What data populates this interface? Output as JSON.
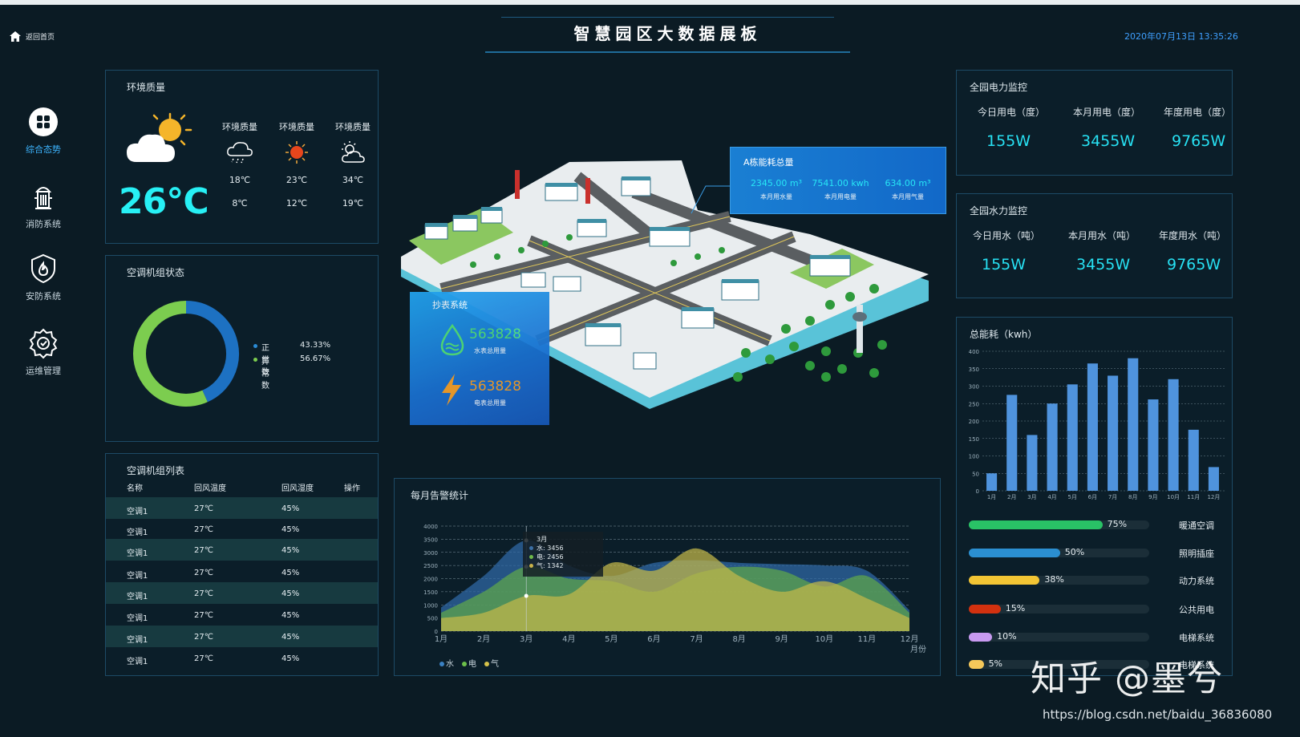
{
  "header": {
    "back_label": "返回首页",
    "title": "智慧园区大数据展板",
    "datetime": "2020年07月13日 13:35:26"
  },
  "nav": [
    {
      "label": "综合态势",
      "icon": "grid-icon",
      "active": true
    },
    {
      "label": "消防系统",
      "icon": "hydrant-icon",
      "active": false
    },
    {
      "label": "安防系统",
      "icon": "shield-icon",
      "active": false
    },
    {
      "label": "运维管理",
      "icon": "gear-icon",
      "active": false
    }
  ],
  "environment": {
    "title": "环境质量",
    "current_temp": "26℃",
    "forecast": [
      {
        "label": "环境质量",
        "icon": "rain-cloud-icon",
        "high": "18℃",
        "low": "8℃"
      },
      {
        "label": "环境质量",
        "icon": "sun-icon",
        "high": "23℃",
        "low": "12℃"
      },
      {
        "label": "环境质量",
        "icon": "partly-cloudy-icon",
        "high": "34℃",
        "low": "19℃"
      }
    ]
  },
  "ac_status": {
    "title": "空调机组状态",
    "legend": [
      {
        "name": "正常数",
        "value": "43.33%",
        "color": "#1d71c2"
      },
      {
        "name": "异常数",
        "value": "56.67%",
        "color": "#7ccd4f"
      }
    ],
    "chart_data": {
      "type": "pie",
      "categories": [
        "正常数",
        "异常数"
      ],
      "values": [
        43.33,
        56.67
      ]
    }
  },
  "ac_list": {
    "title": "空调机组列表",
    "columns": [
      "名称",
      "回风温度",
      "回风湿度",
      "操作"
    ],
    "rows": [
      {
        "name": "空调1",
        "temp": "27℃",
        "humidity": "45%"
      },
      {
        "name": "空调1",
        "temp": "27℃",
        "humidity": "45%"
      },
      {
        "name": "空调1",
        "temp": "27℃",
        "humidity": "45%"
      },
      {
        "name": "空调1",
        "temp": "27℃",
        "humidity": "45%"
      },
      {
        "name": "空调1",
        "temp": "27℃",
        "humidity": "45%"
      },
      {
        "name": "空调1",
        "temp": "27℃",
        "humidity": "45%"
      },
      {
        "name": "空调1",
        "temp": "27℃",
        "humidity": "45%"
      },
      {
        "name": "空调1",
        "temp": "27℃",
        "humidity": "45%"
      }
    ]
  },
  "energy_popup": {
    "title": "A栋能耗总量",
    "items": [
      {
        "value": "2345.00 m³",
        "label": "本月用水量"
      },
      {
        "value": "7541.00 kwh",
        "label": "本月用电量"
      },
      {
        "value": "634.00 m³",
        "label": "本月用气量"
      }
    ]
  },
  "meter": {
    "title": "抄表系统",
    "water": {
      "value": "563828",
      "label": "水表总用量"
    },
    "power": {
      "value": "563828",
      "label": "电表总用量"
    }
  },
  "power_monitor": {
    "title": "全园电力监控",
    "items": [
      {
        "label": "今日用电（度）",
        "value": "155W"
      },
      {
        "label": "本月用电（度）",
        "value": "3455W"
      },
      {
        "label": "年度用电（度）",
        "value": "9765W"
      }
    ]
  },
  "water_monitor": {
    "title": "全园水力监控",
    "items": [
      {
        "label": "今日用水（吨）",
        "value": "155W"
      },
      {
        "label": "本月用水（吨）",
        "value": "3455W"
      },
      {
        "label": "年度用水（吨）",
        "value": "9765W"
      }
    ]
  },
  "energy_total": {
    "title": "总能耗（kwh）",
    "chart_data": {
      "type": "bar",
      "categories": [
        "1月",
        "2月",
        "3月",
        "4月",
        "5月",
        "6月",
        "7月",
        "8月",
        "9月",
        "10月",
        "11月",
        "12月"
      ],
      "values": [
        50,
        275,
        160,
        250,
        305,
        365,
        330,
        380,
        262,
        320,
        175,
        68
      ],
      "ylim": [
        0,
        400
      ],
      "yticks": [
        0,
        50,
        100,
        150,
        200,
        250,
        300,
        350,
        400
      ],
      "grid": true,
      "bar_color": "#4f93dd"
    },
    "progress": [
      {
        "name": "暖通空调",
        "percent": 75,
        "label": "75%",
        "color": "#29c266"
      },
      {
        "name": "照明插座",
        "percent": 50,
        "label": "50%",
        "color": "#2b8fd1"
      },
      {
        "name": "动力系统",
        "percent": 38,
        "label": "38%",
        "color": "#f3c534"
      },
      {
        "name": "公共用电",
        "percent": 15,
        "label": "15%",
        "color": "#d3310f"
      },
      {
        "name": "电梯系统",
        "percent": 10,
        "label": "10%",
        "color": "#c89af0"
      },
      {
        "name": "电梯系统",
        "percent": 5,
        "label": "5%",
        "color": "#f5c85a"
      }
    ]
  },
  "alarm_stats": {
    "title": "每月告警统计",
    "x_unit": "月份",
    "tooltip": {
      "title": "3月",
      "rows": [
        {
          "text": "水: 3456",
          "color": "#3b6fa6"
        },
        {
          "text": "电: 2456",
          "color": "#6fb94a"
        },
        {
          "text": "气: 1342",
          "color": "#c8b24a"
        }
      ]
    },
    "legend": [
      {
        "name": "水",
        "color": "#3b82c4"
      },
      {
        "name": "电",
        "color": "#6cc04a"
      },
      {
        "name": "气",
        "color": "#d6c24a"
      }
    ],
    "chart_data": {
      "type": "area",
      "categories": [
        "1月",
        "2月",
        "3月",
        "4月",
        "5月",
        "6月",
        "7月",
        "8月",
        "9月",
        "10月",
        "11月",
        "12月"
      ],
      "ylim": [
        0,
        4000
      ],
      "yticks": [
        0,
        500,
        1000,
        1500,
        2000,
        2500,
        3000,
        3500,
        4000
      ],
      "grid": true,
      "series": [
        {
          "name": "水",
          "color": "#2f6aa8",
          "values": [
            900,
            2100,
            3456,
            2500,
            2100,
            2600,
            2700,
            2600,
            2550,
            2500,
            2300,
            800
          ]
        },
        {
          "name": "电",
          "color": "#5fa84a",
          "values": [
            700,
            1500,
            2456,
            2000,
            1900,
            1500,
            2200,
            2450,
            2300,
            1700,
            2100,
            700
          ]
        },
        {
          "name": "气",
          "color": "#c4b84a",
          "values": [
            500,
            700,
            1342,
            1400,
            2600,
            2300,
            3150,
            2100,
            1500,
            1900,
            1250,
            500
          ]
        }
      ]
    }
  },
  "watermark": "知乎 @墨兮",
  "source_url": "https://blog.csdn.net/baidu_36836080"
}
